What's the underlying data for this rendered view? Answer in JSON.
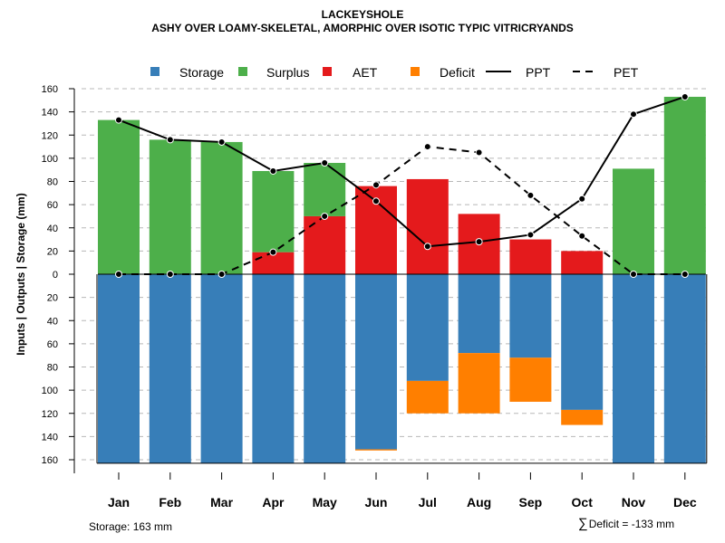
{
  "chart_data": {
    "type": "bar",
    "title": "LACKEYSHOLE",
    "subtitle": "ASHY OVER LOAMY-SKELETAL, AMORPHIC OVER ISOTIC TYPIC VITRICRYANDS",
    "ylabel": "Inputs | Outputs | Storage    (mm)",
    "xlabel": "",
    "ylim": [
      -160,
      160
    ],
    "yticks": [
      160,
      140,
      120,
      100,
      80,
      60,
      40,
      20,
      0,
      20,
      40,
      60,
      80,
      100,
      120,
      140,
      160
    ],
    "categories": [
      "Jan",
      "Feb",
      "Mar",
      "Apr",
      "May",
      "Jun",
      "Jul",
      "Aug",
      "Sep",
      "Oct",
      "Nov",
      "Dec"
    ],
    "legend": [
      {
        "label": "Storage",
        "color": "#377EB8",
        "kind": "box"
      },
      {
        "label": "Surplus",
        "color": "#4DAF4A",
        "kind": "box"
      },
      {
        "label": "AET",
        "color": "#E41A1C",
        "kind": "box"
      },
      {
        "label": "Deficit",
        "color": "#FF7F00",
        "kind": "box"
      },
      {
        "label": "PPT",
        "color": "#000000",
        "kind": "solid"
      },
      {
        "label": "PET",
        "color": "#000000",
        "kind": "dashed"
      }
    ],
    "series": [
      {
        "name": "Storage",
        "color": "#377EB8",
        "values": [
          163,
          163,
          163,
          163,
          163,
          151,
          92,
          68,
          72,
          117,
          163,
          163
        ]
      },
      {
        "name": "Surplus",
        "color": "#4DAF4A",
        "values": [
          133,
          116,
          114,
          70,
          46,
          0,
          0,
          0,
          0,
          0,
          91,
          153
        ]
      },
      {
        "name": "AET",
        "color": "#E41A1C",
        "values": [
          0,
          0,
          0,
          19,
          50,
          76,
          82,
          52,
          30,
          20,
          0,
          0
        ]
      },
      {
        "name": "Deficit",
        "color": "#FF7F00",
        "values": [
          0,
          0,
          0,
          0,
          0,
          1,
          28,
          52,
          38,
          13,
          0,
          0
        ]
      },
      {
        "name": "PPT",
        "values": [
          133,
          116,
          114,
          89,
          96,
          63,
          24,
          28,
          34,
          65,
          138,
          153
        ]
      },
      {
        "name": "PET",
        "values": [
          0,
          0,
          0,
          19,
          50,
          77,
          110,
          105,
          68,
          33,
          0,
          0
        ]
      }
    ],
    "storage_label": "Storage: 163 mm",
    "deficit_label": "Deficit = -133 mm",
    "grid": true
  }
}
